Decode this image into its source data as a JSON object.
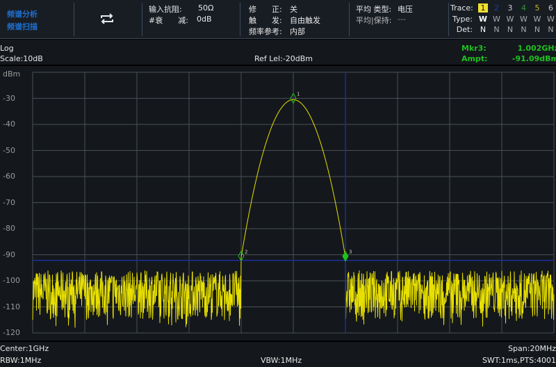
{
  "header": {
    "mode_1": "频谱分析",
    "mode_2": "频谱扫描",
    "toggle_icon": "repeat-icon",
    "input_impedance_label": "输入抗阻:",
    "input_impedance_value": "50Ω",
    "attenuation_label": "#衰　　减:",
    "attenuation_value": "0dB",
    "correction_label": "修　　正:",
    "correction_value": "关",
    "trigger_label": "触　　发:",
    "trigger_value": "自由触发",
    "freq_ref_label": "频率参考:",
    "freq_ref_value": "内部",
    "avg_type_label": "平均 类型:",
    "avg_type_value": "电压",
    "avg_hold_label": "平均|保持:",
    "avg_hold_value": "---",
    "trace_label": "Trace:",
    "type_label": "Type:",
    "det_label": "Det:",
    "traces": [
      {
        "num": "1",
        "type": "W",
        "det": "N",
        "color": "#111111",
        "active": true
      },
      {
        "num": "2",
        "type": "W",
        "det": "N",
        "color": "#1a3f9a",
        "active": false
      },
      {
        "num": "3",
        "type": "W",
        "det": "N",
        "color": "#d0d0d0",
        "active": false
      },
      {
        "num": "4",
        "type": "W",
        "det": "N",
        "color": "#2a9a2a",
        "active": false
      },
      {
        "num": "5",
        "type": "W",
        "det": "N",
        "color": "#c9b42a",
        "active": false
      },
      {
        "num": "6",
        "type": "W",
        "det": "N",
        "color": "#c8c8c8",
        "active": false
      }
    ]
  },
  "info": {
    "scale_type": "Log",
    "scale": "Scale:10dB",
    "ref_level": "Ref Lel:-20dBm",
    "marker_label": "Mkr3:",
    "marker_freq": "1.002GHz",
    "ampt_label": "Ampt:",
    "marker_ampt": "-91.09dBm"
  },
  "footer": {
    "center": "Center:1GHz",
    "span": "Span:20MHz",
    "rbw": "RBW:1MHz",
    "vbw": "VBW:1MHz",
    "swt": "SWT:1ms,PTS:4001"
  },
  "chart_data": {
    "type": "line",
    "ylabel": "dBm",
    "ylim": [
      -120,
      -20
    ],
    "yticks": [
      "-30",
      "-40",
      "-50",
      "-60",
      "-70",
      "-80",
      "-90",
      "-100",
      "-110",
      "-120"
    ],
    "x_center_ghz": 1.0,
    "x_span_mhz": 20,
    "grid": true,
    "trace_color": "#e8e000",
    "series": [
      {
        "x_mhz": [
          -10,
          -2,
          -1,
          0,
          1,
          2,
          10
        ],
        "y": [
          -105,
          -105,
          -91,
          -30.5,
          -91,
          -105,
          -105
        ]
      }
    ],
    "noise_floor_range_dbm": [
      -115,
      -96
    ],
    "markers": [
      {
        "id": "1",
        "x_ghz": 1.0,
        "y_dbm": -30.5
      },
      {
        "id": "2",
        "x_ghz": 0.998,
        "y_dbm": -91
      },
      {
        "id": "3",
        "x_ghz": 1.002,
        "y_dbm": -91.09,
        "active": true
      }
    ],
    "marker_line_color": "#1a2f9a",
    "marker_color": "#1fbf1f"
  }
}
